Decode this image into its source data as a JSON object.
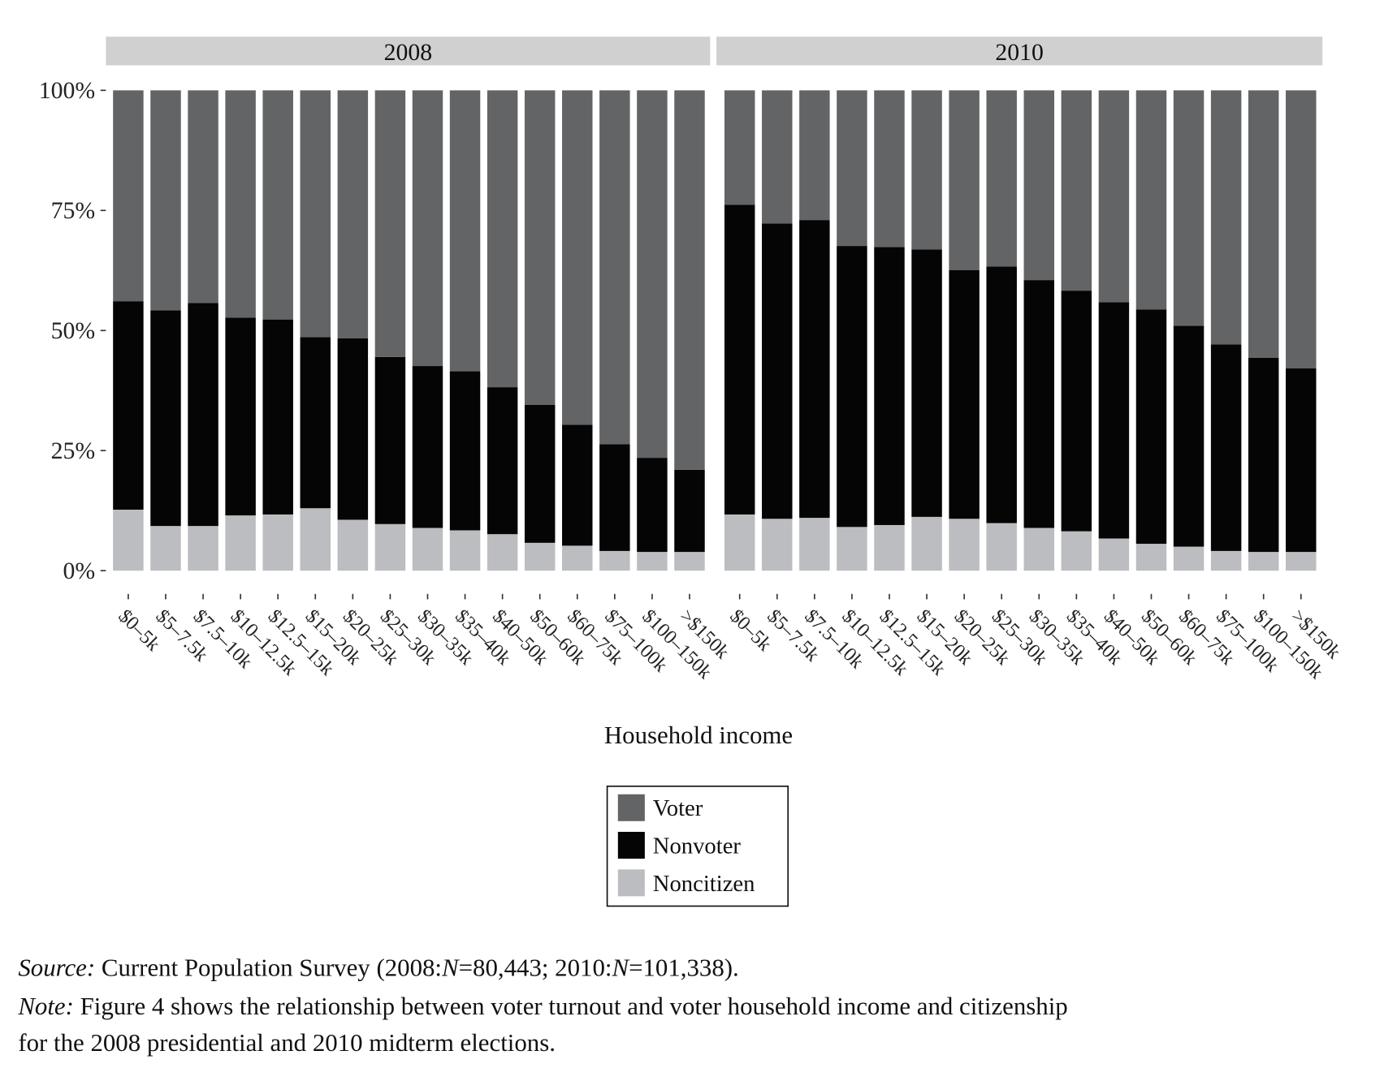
{
  "chart_data": {
    "type": "bar",
    "stacked": true,
    "xlabel": "Household income",
    "ylabel": "",
    "ylim": [
      0,
      100
    ],
    "yticks": [
      "0%",
      "25%",
      "50%",
      "75%",
      "100%"
    ],
    "categories": [
      "$0–5k",
      "$5–7.5k",
      "$7.5–10k",
      "$10–12.5k",
      "$12.5–15k",
      "$15–20k",
      "$20–25k",
      "$25–30k",
      "$30–35k",
      "$35–40k",
      "$40–50k",
      "$50–60k",
      "$60–75k",
      "$75–100k",
      "$100–150k",
      ">$150k"
    ],
    "legend": {
      "placement": "bottom-center",
      "entries": [
        "Voter",
        "Nonvoter",
        "Noncitizen"
      ]
    },
    "colors": {
      "Voter": "#636466",
      "Nonvoter": "#050505",
      "Noncitizen": "#bcbdc0"
    },
    "panels": [
      {
        "title": "2008",
        "series": [
          {
            "name": "Noncitizen",
            "values": [
              12.7,
              9.3,
              9.3,
              11.5,
              11.7,
              13.0,
              10.6,
              9.7,
              8.9,
              8.4,
              7.6,
              5.8,
              5.2,
              4.1,
              3.9,
              3.9
            ]
          },
          {
            "name": "Nonvoter",
            "values": [
              43.4,
              44.9,
              46.4,
              41.2,
              40.6,
              35.6,
              37.8,
              34.8,
              33.7,
              33.1,
              30.6,
              28.7,
              25.2,
              22.2,
              19.6,
              17.1
            ]
          },
          {
            "name": "Voter",
            "values": [
              43.9,
              45.8,
              44.3,
              47.3,
              47.7,
              51.4,
              51.6,
              55.5,
              57.4,
              58.5,
              61.8,
              65.5,
              69.6,
              73.7,
              76.5,
              79.0
            ]
          }
        ]
      },
      {
        "title": "2010",
        "series": [
          {
            "name": "Noncitizen",
            "values": [
              11.7,
              10.8,
              11.0,
              9.1,
              9.5,
              11.2,
              10.8,
              9.9,
              8.9,
              8.2,
              6.7,
              5.6,
              5.0,
              4.1,
              3.9,
              3.9
            ]
          },
          {
            "name": "Nonvoter",
            "values": [
              64.5,
              61.5,
              62.0,
              58.5,
              57.9,
              55.7,
              51.8,
              53.4,
              51.6,
              50.1,
              49.2,
              48.8,
              46.0,
              43.0,
              40.4,
              38.2
            ]
          },
          {
            "name": "Voter",
            "values": [
              23.8,
              27.7,
              27.0,
              32.4,
              32.6,
              33.1,
              37.4,
              36.7,
              39.5,
              41.7,
              44.1,
              45.6,
              49.0,
              52.9,
              55.7,
              57.9
            ]
          }
        ]
      }
    ]
  },
  "caption": {
    "line1": [
      {
        "text": "Source:",
        "italic": true
      },
      {
        "text": " Current Population Survey (2008:",
        "italic": false
      },
      {
        "text": "N",
        "italic": true
      },
      {
        "text": "=80,443; 2010:",
        "italic": false
      },
      {
        "text": "N",
        "italic": true
      },
      {
        "text": "=101,338).",
        "italic": false
      }
    ],
    "line2": [
      {
        "text": "Note:",
        "italic": true
      },
      {
        "text": " Figure 4 shows the relationship between voter turnout and voter household income and citizenship",
        "italic": false
      }
    ],
    "line3": [
      {
        "text": "for the 2008 presidential and 2010 midterm elections.",
        "italic": false
      }
    ]
  }
}
